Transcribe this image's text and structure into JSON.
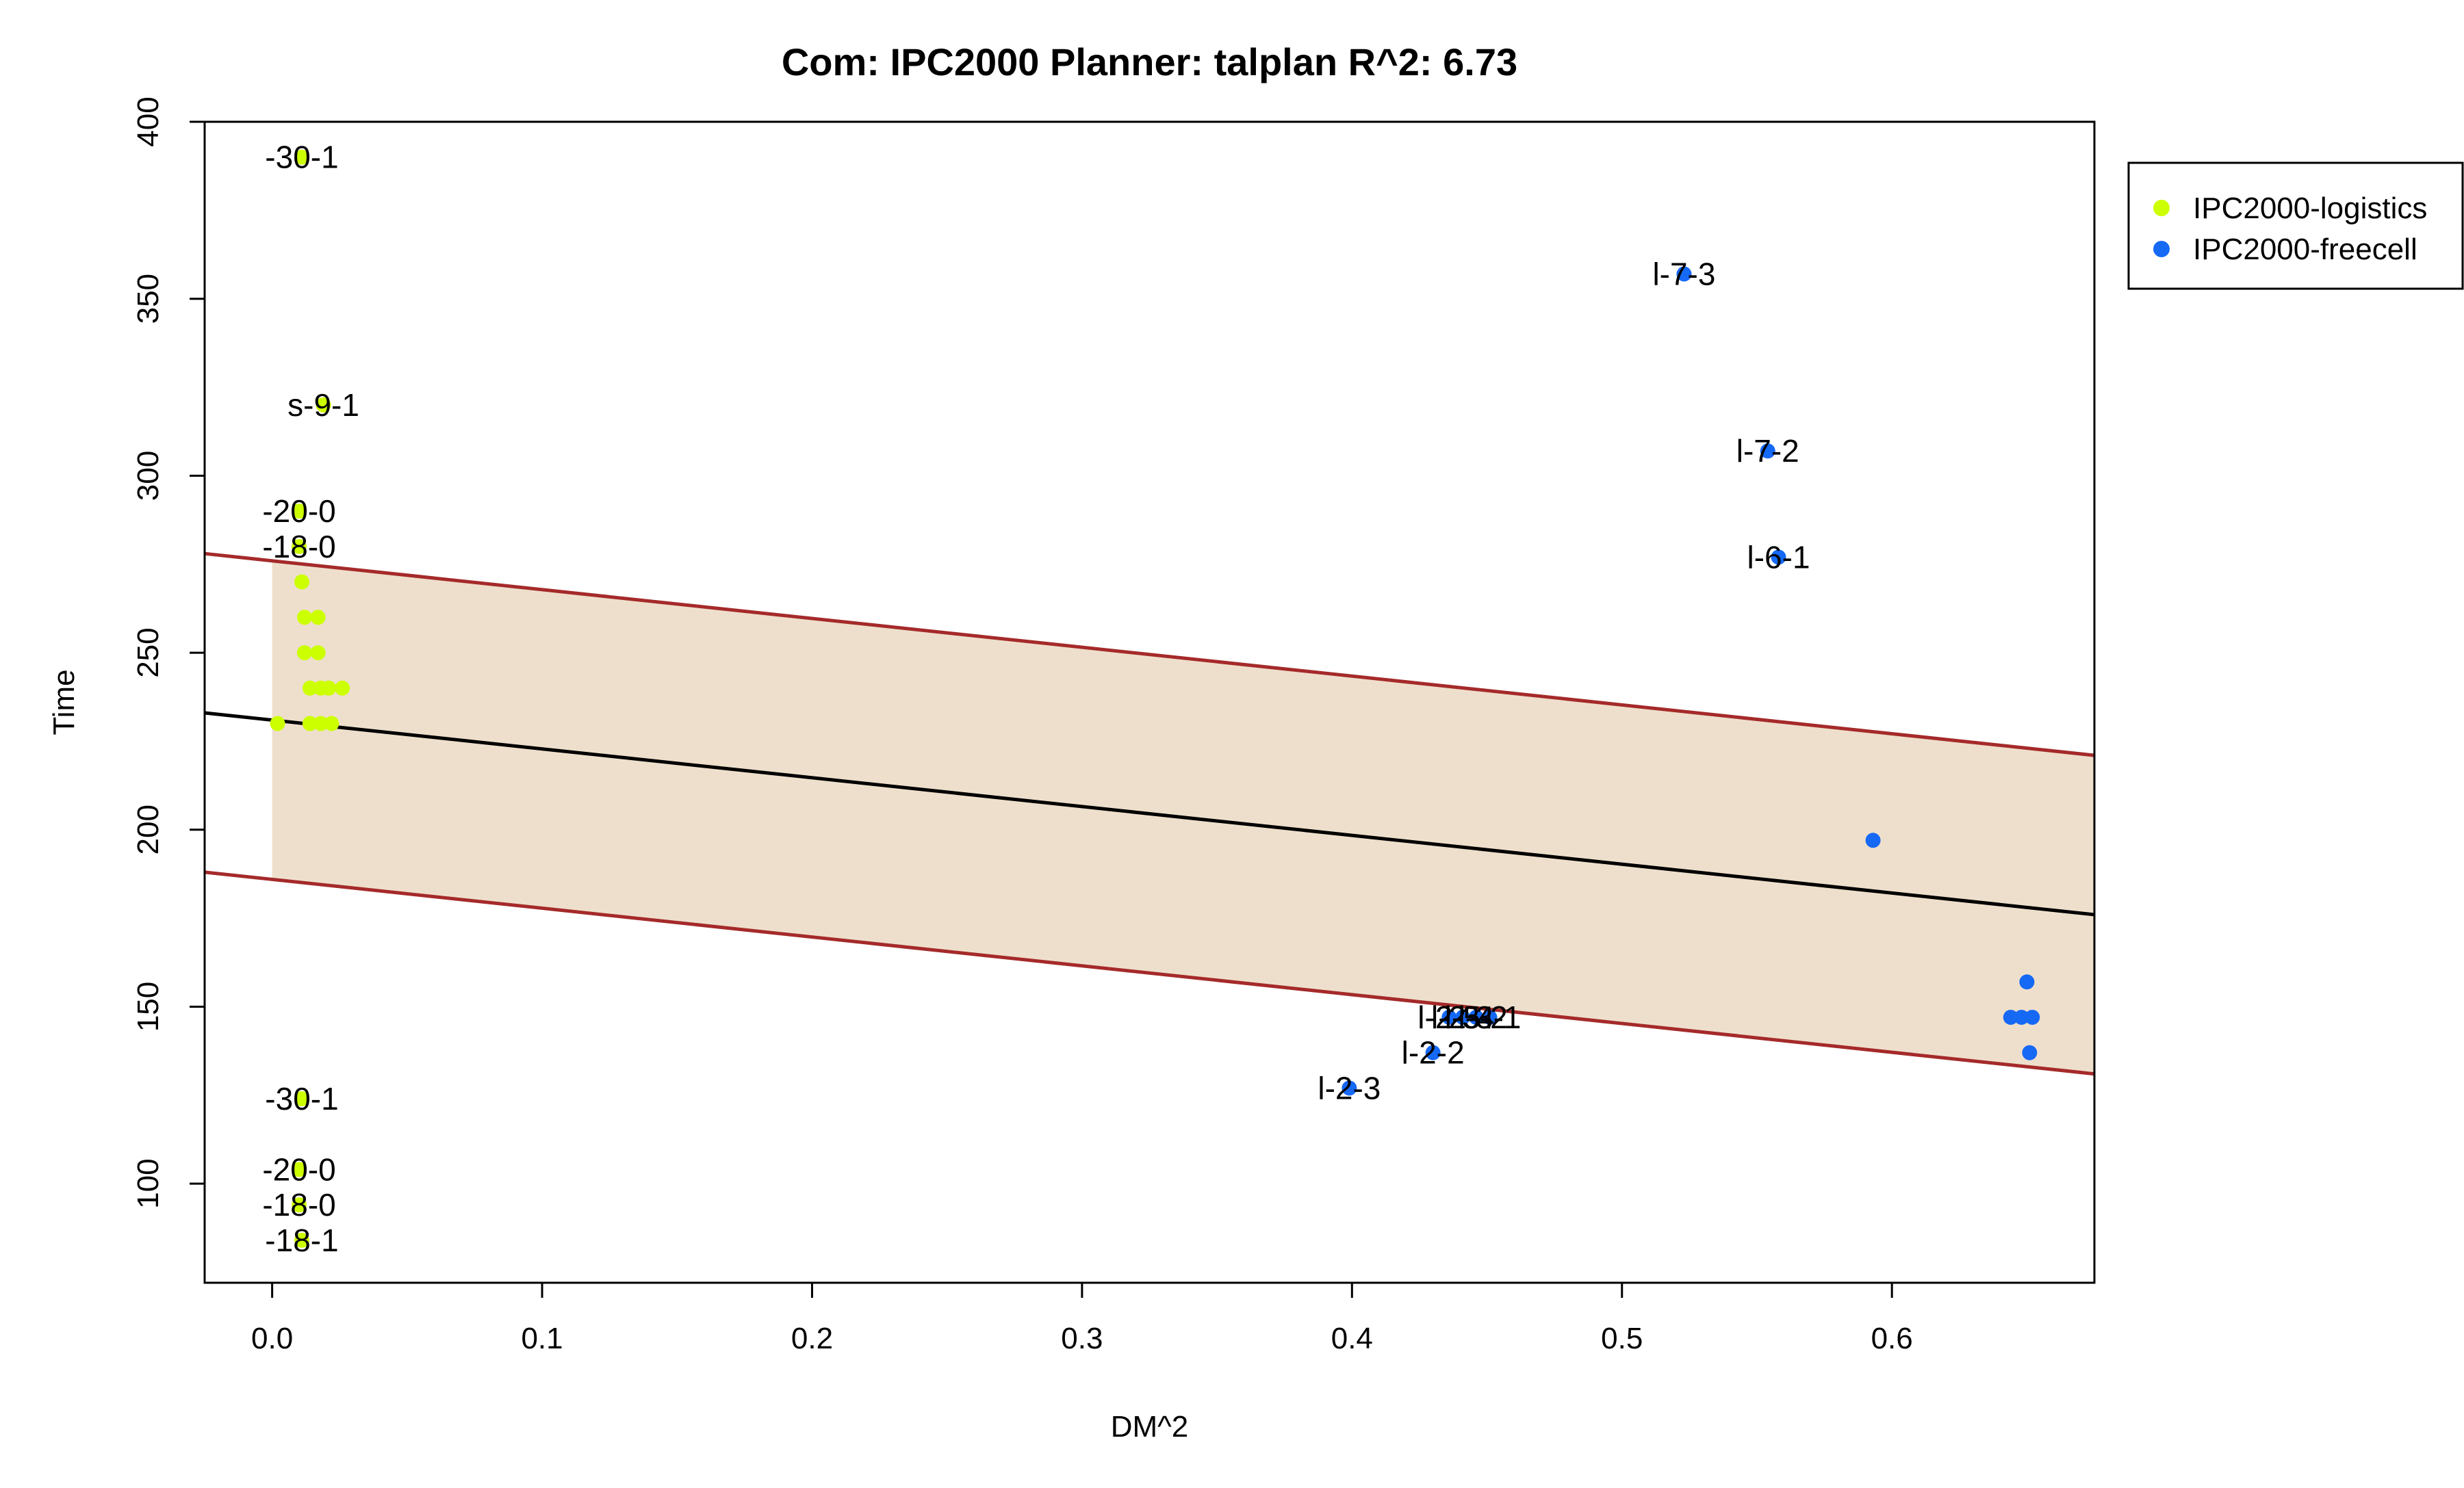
{
  "chart_data": {
    "type": "scatter",
    "title": "Com: IPC2000 Planner: talplan R^2: 6.73",
    "xlabel": "DM^2",
    "ylabel": "Time",
    "xlim": [
      -0.025,
      0.675
    ],
    "ylim": [
      72,
      400
    ],
    "xticks": [
      0.0,
      0.1,
      0.2,
      0.3,
      0.4,
      0.5,
      0.6
    ],
    "xtick_labels": [
      "0.0",
      "0.1",
      "0.2",
      "0.3",
      "0.4",
      "0.5",
      "0.6"
    ],
    "yticks": [
      100,
      150,
      200,
      250,
      300,
      350,
      400
    ],
    "ytick_labels": [
      "100",
      "150",
      "200",
      "250",
      "300",
      "350",
      "400"
    ],
    "grid": false,
    "legend_position": "top-right",
    "regression_line": {
      "color": "#000000",
      "points": [
        [
          -0.025,
          233
        ],
        [
          0.675,
          176
        ]
      ]
    },
    "prediction_band": {
      "fill": "#EEDFCC",
      "border_color": "#A52A2A",
      "upper": [
        [
          -0.025,
          278
        ],
        [
          0.675,
          221
        ]
      ],
      "lower": [
        [
          -0.025,
          188
        ],
        [
          0.675,
          131
        ]
      ]
    },
    "series": [
      {
        "name": "IPC2000-logistics",
        "color": "#CCFF00",
        "points": [
          {
            "x": 0.011,
            "y": 390,
            "label": "-30-1"
          },
          {
            "x": 0.019,
            "y": 320,
            "label": "s-9-1"
          },
          {
            "x": 0.01,
            "y": 290,
            "label": "-20-0"
          },
          {
            "x": 0.01,
            "y": 280,
            "label": "-18-0"
          },
          {
            "x": 0.011,
            "y": 270
          },
          {
            "x": 0.012,
            "y": 260
          },
          {
            "x": 0.017,
            "y": 260
          },
          {
            "x": 0.012,
            "y": 250
          },
          {
            "x": 0.017,
            "y": 250
          },
          {
            "x": 0.014,
            "y": 240
          },
          {
            "x": 0.018,
            "y": 240
          },
          {
            "x": 0.021,
            "y": 240
          },
          {
            "x": 0.026,
            "y": 240
          },
          {
            "x": 0.002,
            "y": 230
          },
          {
            "x": 0.014,
            "y": 230
          },
          {
            "x": 0.018,
            "y": 230
          },
          {
            "x": 0.022,
            "y": 230
          },
          {
            "x": 0.011,
            "y": 124,
            "label": "-30-1"
          },
          {
            "x": 0.01,
            "y": 104,
            "label": "-20-0"
          },
          {
            "x": 0.01,
            "y": 94,
            "label": "-18-0"
          },
          {
            "x": 0.011,
            "y": 84,
            "label": "-18-1"
          }
        ]
      },
      {
        "name": "IPC2000-freecell",
        "color": "#1569F5",
        "points": [
          {
            "x": 0.523,
            "y": 357,
            "label": "l-7-3"
          },
          {
            "x": 0.554,
            "y": 307,
            "label": "l-7-2"
          },
          {
            "x": 0.558,
            "y": 277,
            "label": "l-6-1"
          },
          {
            "x": 0.593,
            "y": 197
          },
          {
            "x": 0.436,
            "y": 147,
            "label": "l-2-5"
          },
          {
            "x": 0.441,
            "y": 147,
            "label": "l-2-4"
          },
          {
            "x": 0.446,
            "y": 147,
            "label": "l-3-2"
          },
          {
            "x": 0.451,
            "y": 147,
            "label": "l-3-1"
          },
          {
            "x": 0.43,
            "y": 137,
            "label": "l-2-2"
          },
          {
            "x": 0.399,
            "y": 127,
            "label": "l-2-3"
          },
          {
            "x": 0.65,
            "y": 157
          },
          {
            "x": 0.644,
            "y": 147
          },
          {
            "x": 0.648,
            "y": 147
          },
          {
            "x": 0.652,
            "y": 147
          },
          {
            "x": 0.651,
            "y": 137
          }
        ]
      }
    ]
  }
}
